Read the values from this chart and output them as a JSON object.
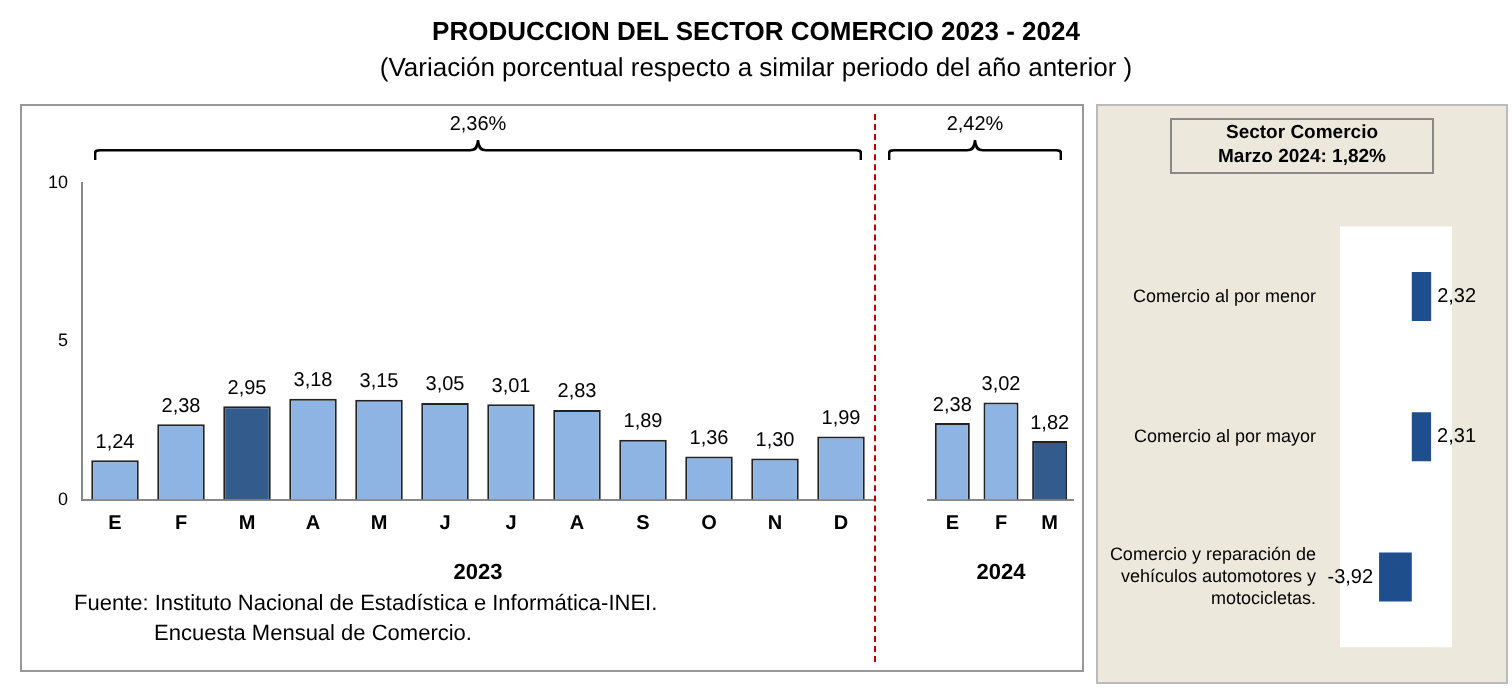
{
  "chart_data": [
    {
      "type": "bar",
      "title": "PRODUCCION DEL SECTOR COMERCIO 2023 - 2024",
      "subtitle": "(Variación porcentual respecto a similar periodo del año anterior )",
      "xlabel": "2023",
      "categories": [
        "E",
        "F",
        "M",
        "A",
        "M",
        "J",
        "J",
        "A",
        "S",
        "O",
        "N",
        "D"
      ],
      "values": [
        1.24,
        2.38,
        2.95,
        3.18,
        3.15,
        3.05,
        3.01,
        2.83,
        1.89,
        1.36,
        1.3,
        1.99
      ],
      "colors": [
        "#8db4e2",
        "#8db4e2",
        "#335b8c",
        "#8db4e2",
        "#8db4e2",
        "#8db4e2",
        "#8db4e2",
        "#8db4e2",
        "#8db4e2",
        "#8db4e2",
        "#8db4e2",
        "#8db4e2"
      ],
      "value_labels": [
        "1,24",
        "2,38",
        "2,95",
        "3,18",
        "3,15",
        "3,05",
        "3,01",
        "2,83",
        "1,89",
        "1,36",
        "1,30",
        "1,99"
      ],
      "ylim": [
        0,
        10
      ],
      "yticks": [
        0,
        5,
        10
      ],
      "grid": false,
      "legend": false,
      "annotations": [
        "2,36%",
        "Fuente: Instituto Nacional de Estadística e Informática-INEI.",
        "Encuesta Mensual de Comercio."
      ]
    },
    {
      "type": "bar",
      "xlabel": "2024",
      "categories": [
        "E",
        "F",
        "M"
      ],
      "values": [
        2.38,
        3.02,
        1.82
      ],
      "colors": [
        "#8db4e2",
        "#8db4e2",
        "#335b8c"
      ],
      "value_labels": [
        "2,38",
        "3,02",
        "1,82"
      ],
      "ylim": [
        0,
        10
      ],
      "tick_labels": "x",
      "grid": false,
      "legend": false,
      "annotations": [
        "2,42%"
      ]
    },
    {
      "type": "bar",
      "orientation": "horizontal",
      "title": "Sector Comercio",
      "subtitle": "Marzo 2024: 1,82%",
      "categories": [
        "Comercio al por menor",
        "Comercio al por mayor",
        "Comercio y reparación de vehículos automotores y motocicletas."
      ],
      "values": [
        2.32,
        2.31,
        -3.92
      ],
      "color": "#1f4e8c",
      "value_labels": [
        "2,32",
        "2,31",
        "-3,92"
      ],
      "tick_labels": "y",
      "legend": false,
      "grid": false
    }
  ]
}
